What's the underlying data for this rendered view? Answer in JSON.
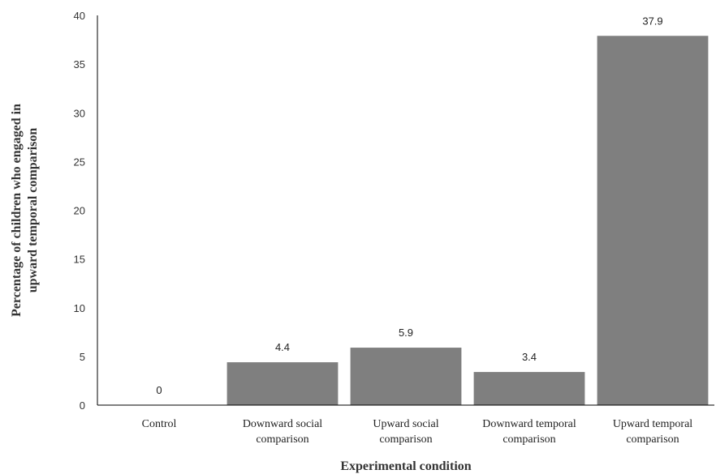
{
  "chart_data": {
    "type": "bar",
    "title": "",
    "xlabel": "Experimental condition",
    "ylabel_lines": [
      "Percentage of children who engaged in",
      "upward temporal comparison"
    ],
    "categories": [
      [
        "Control"
      ],
      [
        "Downward social",
        "comparison"
      ],
      [
        "Upward social",
        "comparison"
      ],
      [
        "Downward temporal",
        "comparison"
      ],
      [
        "Upward temporal",
        "comparison"
      ]
    ],
    "values": [
      0,
      4.4,
      5.9,
      3.4,
      37.9
    ],
    "data_labels": [
      "0",
      "4.4",
      "5.9",
      "3.4",
      "37.9"
    ],
    "ylim": [
      0,
      40
    ],
    "yticks": [
      0,
      5,
      10,
      15,
      20,
      25,
      30,
      35,
      40
    ],
    "grid": false,
    "legend": "none",
    "bar_color": "#7f7f7f"
  }
}
